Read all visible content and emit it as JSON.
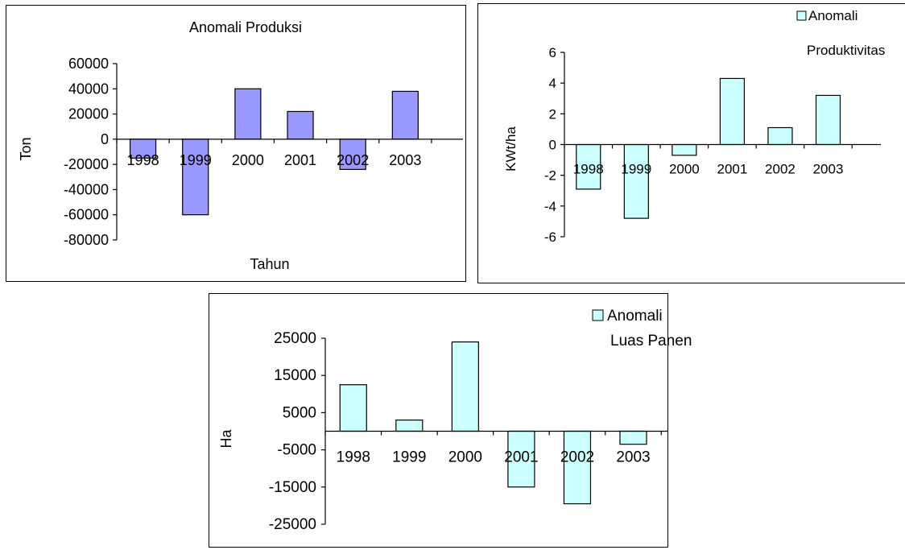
{
  "chart_data": [
    {
      "type": "bar",
      "title": "Anomali Produksi",
      "xlabel": "Tahun",
      "ylabel": "Ton",
      "categories": [
        "1998",
        "1999",
        "2000",
        "2001",
        "2002",
        "2003"
      ],
      "yticks": [
        "60000",
        "40000",
        "20000",
        "0",
        "-20000",
        "-40000",
        "-60000",
        "-80000"
      ],
      "ylim": [
        -80000,
        60000
      ],
      "series": [
        {
          "values": [
            -15000,
            -60000,
            40000,
            22000,
            -24000,
            38000
          ],
          "color": "#9999ff"
        }
      ],
      "grid": false
    },
    {
      "type": "bar",
      "ylabel": "KWt/ha",
      "categories": [
        "1998",
        "1999",
        "2000",
        "2001",
        "2002",
        "2003"
      ],
      "yticks": [
        "6",
        "4",
        "2",
        "0",
        "-2",
        "-4",
        "-6"
      ],
      "ylim": [
        -6,
        6
      ],
      "legend": "top-right",
      "series": [
        {
          "name": "Anomali Produktivitas",
          "values": [
            -2.9,
            -4.8,
            -0.7,
            4.3,
            1.1,
            3.2
          ],
          "color": "#ccffff"
        }
      ],
      "grid": false
    },
    {
      "type": "bar",
      "ylabel": "Ha",
      "categories": [
        "1998",
        "1999",
        "2000",
        "2001",
        "2002",
        "2003"
      ],
      "yticks": [
        "25000",
        "15000",
        "5000",
        "-5000",
        "-15000",
        "-25000"
      ],
      "ylim": [
        -25000,
        25000
      ],
      "legend": "top-right",
      "series": [
        {
          "name": "Anomali Luas Panen",
          "values": [
            12500,
            3000,
            24000,
            -15000,
            -19500,
            -3500
          ],
          "color": "#ccffff"
        }
      ],
      "grid": false
    }
  ]
}
